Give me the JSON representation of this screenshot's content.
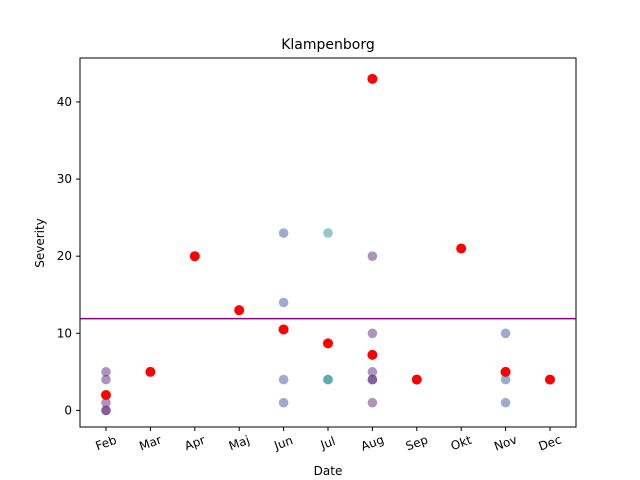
{
  "chart_data": {
    "type": "scatter",
    "title": "Klampenborg",
    "xlabel": "Date",
    "ylabel": "Severity",
    "categories": [
      "Feb",
      "Mar",
      "Apr",
      "Maj",
      "Jun",
      "Jul",
      "Aug",
      "Sep",
      "Okt",
      "Nov",
      "Dec"
    ],
    "ylim": [
      -2.15,
      45.7
    ],
    "yticks": [
      0,
      10,
      20,
      30,
      40
    ],
    "grid": false,
    "legend": "none",
    "reference_line": {
      "y": 11.9,
      "color": "#800080"
    },
    "series": [
      {
        "color": "#3b5a9a",
        "points": [
          {
            "x": "Jun",
            "y": 23
          },
          {
            "x": "Jun",
            "y": 14
          },
          {
            "x": "Jun",
            "y": 4
          },
          {
            "x": "Jun",
            "y": 1
          },
          {
            "x": "Nov",
            "y": 10
          },
          {
            "x": "Nov",
            "y": 4
          },
          {
            "x": "Nov",
            "y": 1
          }
        ]
      },
      {
        "color": "#2a9090",
        "points": [
          {
            "x": "Jul",
            "y": 23
          },
          {
            "x": "Jul",
            "y": 4
          },
          {
            "x": "Jul",
            "y": 4
          }
        ]
      },
      {
        "color": "#5a2a7a",
        "points": [
          {
            "x": "Feb",
            "y": 5
          },
          {
            "x": "Feb",
            "y": 4
          },
          {
            "x": "Feb",
            "y": 1
          },
          {
            "x": "Feb",
            "y": 0
          },
          {
            "x": "Feb",
            "y": 0
          },
          {
            "x": "Aug",
            "y": 20
          },
          {
            "x": "Aug",
            "y": 10
          },
          {
            "x": "Aug",
            "y": 5
          },
          {
            "x": "Aug",
            "y": 4
          },
          {
            "x": "Aug",
            "y": 4
          },
          {
            "x": "Aug",
            "y": 1
          }
        ]
      },
      {
        "color": "#ff0000",
        "points": [
          {
            "x": "Feb",
            "y": 2
          },
          {
            "x": "Mar",
            "y": 5
          },
          {
            "x": "Apr",
            "y": 20
          },
          {
            "x": "Maj",
            "y": 13
          },
          {
            "x": "Jun",
            "y": 10.5
          },
          {
            "x": "Jul",
            "y": 8.7
          },
          {
            "x": "Aug",
            "y": 43
          },
          {
            "x": "Aug",
            "y": 7.2
          },
          {
            "x": "Sep",
            "y": 4
          },
          {
            "x": "Okt",
            "y": 21
          },
          {
            "x": "Nov",
            "y": 5
          },
          {
            "x": "Dec",
            "y": 4
          }
        ]
      }
    ]
  }
}
